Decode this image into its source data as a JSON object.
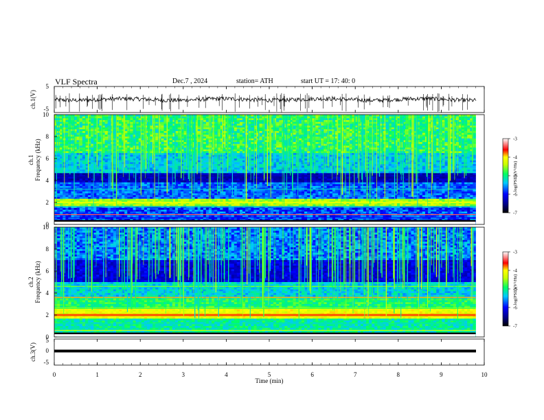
{
  "header": {
    "title": "VLF  Spectra",
    "date": "Dec.7  , 2024",
    "station": "station= ATH",
    "start": "start  UT  =    17: 40: 0"
  },
  "chart_data": [
    {
      "type": "line",
      "panel": "ch1-waveform",
      "ylabel": "ch.1(V)",
      "ylim": [
        -5,
        5
      ],
      "yticks": [
        "5",
        "-5"
      ],
      "xlim": [
        0,
        10
      ],
      "series_color": "#000000",
      "approx_baseline": 0
    },
    {
      "type": "heatmap",
      "panel": "ch1-spectrogram",
      "ylabel": "ch.1\nFrequency (kHz)",
      "ylabel_lines": [
        "ch.1",
        "Frequency (kHz)"
      ],
      "ylim": [
        0,
        10
      ],
      "yticks": [
        "0",
        "2",
        "4",
        "6",
        "8",
        "10"
      ],
      "xlim": [
        0,
        10
      ],
      "data_end_min": 9.8,
      "colorbar": {
        "label": "log(PSD)(V²/Hz)",
        "ticks": [
          "-3",
          "-4",
          "-5",
          "-6",
          "-7"
        ],
        "range": [
          -7,
          -3
        ]
      }
    },
    {
      "type": "heatmap",
      "panel": "ch2-spectrogram",
      "ylabel": "ch.2\nFrequency (kHz)",
      "ylabel_lines": [
        "ch.2",
        "Frequency (kHz)"
      ],
      "ylim": [
        0,
        10
      ],
      "yticks": [
        "0",
        "2",
        "4",
        "6",
        "8",
        "10"
      ],
      "xlim": [
        0,
        10
      ],
      "data_end_min": 9.8,
      "colorbar": {
        "label": "log(PSD)(V²/Hz)",
        "ticks": [
          "-3",
          "-4",
          "-5",
          "-6",
          "-7"
        ],
        "range": [
          -7,
          -3
        ]
      }
    },
    {
      "type": "line",
      "panel": "ch3-waveform",
      "ylabel": "ch.3(V)",
      "ylim": [
        -5,
        5
      ],
      "yticks": [
        "5",
        "0",
        "-5"
      ],
      "xlim": [
        0,
        10
      ],
      "series_color": "#000000",
      "approx_baseline": 0
    }
  ],
  "xaxis": {
    "label": "Time  (min)",
    "ticks": [
      "0",
      "1",
      "2",
      "3",
      "4",
      "5",
      "6",
      "7",
      "8",
      "9",
      "10"
    ]
  }
}
